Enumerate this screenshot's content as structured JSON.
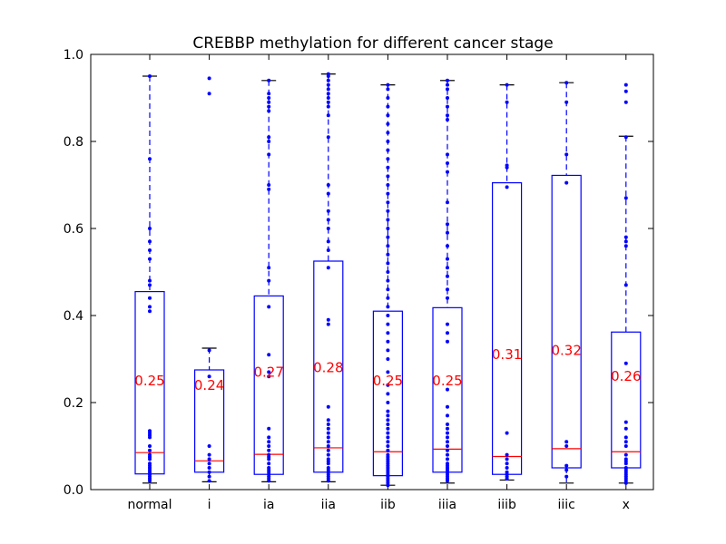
{
  "chart_data": {
    "type": "box",
    "title": "CREBBP methylation for different cancer stage",
    "xlabel": "",
    "ylabel": "",
    "ylim": [
      0.0,
      1.0
    ],
    "yticks": [
      "0.0",
      "0.2",
      "0.4",
      "0.6",
      "0.8",
      "1.0"
    ],
    "grid": false,
    "categories": [
      "normal",
      "i",
      "ia",
      "iia",
      "iib",
      "iiia",
      "iiib",
      "iiic",
      "x"
    ],
    "colors": {
      "box": "#0000ff",
      "median": "#ff0000",
      "whisker": "#0000ff",
      "flier": "#0000ff",
      "label": "#ff0000"
    },
    "boxes": [
      {
        "category": "normal",
        "whisker_low": 0.015,
        "q1": 0.036,
        "median": 0.085,
        "q3": 0.455,
        "whisker_high": 0.95,
        "mean_label": "0.25",
        "points": [
          0.02,
          0.025,
          0.03,
          0.035,
          0.04,
          0.045,
          0.05,
          0.055,
          0.06,
          0.07,
          0.075,
          0.08,
          0.09,
          0.1,
          0.12,
          0.125,
          0.13,
          0.135,
          0.41,
          0.42,
          0.44,
          0.47,
          0.48,
          0.53,
          0.55,
          0.57,
          0.6,
          0.76,
          0.95
        ]
      },
      {
        "category": "i",
        "whisker_low": 0.018,
        "q1": 0.04,
        "median": 0.066,
        "q3": 0.275,
        "whisker_high": 0.325,
        "mean_label": "0.24",
        "points": [
          0.02,
          0.03,
          0.04,
          0.05,
          0.06,
          0.07,
          0.08,
          0.1,
          0.26,
          0.32,
          0.91,
          0.945
        ]
      },
      {
        "category": "ia",
        "whisker_low": 0.018,
        "q1": 0.035,
        "median": 0.081,
        "q3": 0.445,
        "whisker_high": 0.94,
        "mean_label": "0.27",
        "points": [
          0.02,
          0.025,
          0.03,
          0.035,
          0.04,
          0.045,
          0.05,
          0.06,
          0.07,
          0.075,
          0.08,
          0.09,
          0.1,
          0.11,
          0.12,
          0.14,
          0.26,
          0.27,
          0.31,
          0.42,
          0.48,
          0.51,
          0.69,
          0.7,
          0.77,
          0.8,
          0.81,
          0.87,
          0.88,
          0.89,
          0.9,
          0.91,
          0.94
        ]
      },
      {
        "category": "iia",
        "whisker_low": 0.018,
        "q1": 0.04,
        "median": 0.096,
        "q3": 0.525,
        "whisker_high": 0.955,
        "mean_label": "0.28",
        "points": [
          0.02,
          0.025,
          0.03,
          0.035,
          0.04,
          0.045,
          0.05,
          0.06,
          0.065,
          0.07,
          0.08,
          0.09,
          0.1,
          0.11,
          0.12,
          0.13,
          0.14,
          0.15,
          0.16,
          0.19,
          0.38,
          0.39,
          0.51,
          0.55,
          0.57,
          0.6,
          0.62,
          0.64,
          0.68,
          0.7,
          0.81,
          0.86,
          0.88,
          0.89,
          0.9,
          0.91,
          0.92,
          0.93,
          0.94,
          0.95,
          0.955
        ]
      },
      {
        "category": "iib",
        "whisker_low": 0.01,
        "q1": 0.032,
        "median": 0.087,
        "q3": 0.41,
        "whisker_high": 0.93,
        "mean_label": "0.25",
        "points": [
          0.01,
          0.015,
          0.02,
          0.025,
          0.03,
          0.035,
          0.04,
          0.045,
          0.05,
          0.055,
          0.06,
          0.065,
          0.07,
          0.075,
          0.08,
          0.09,
          0.1,
          0.11,
          0.12,
          0.13,
          0.14,
          0.15,
          0.16,
          0.17,
          0.18,
          0.2,
          0.22,
          0.24,
          0.27,
          0.3,
          0.32,
          0.34,
          0.36,
          0.38,
          0.4,
          0.42,
          0.44,
          0.46,
          0.48,
          0.5,
          0.52,
          0.54,
          0.56,
          0.58,
          0.6,
          0.62,
          0.64,
          0.66,
          0.68,
          0.7,
          0.72,
          0.74,
          0.76,
          0.78,
          0.8,
          0.82,
          0.84,
          0.86,
          0.88,
          0.9,
          0.92,
          0.93
        ]
      },
      {
        "category": "iiia",
        "whisker_low": 0.015,
        "q1": 0.04,
        "median": 0.093,
        "q3": 0.418,
        "whisker_high": 0.94,
        "mean_label": "0.25",
        "points": [
          0.02,
          0.025,
          0.03,
          0.035,
          0.04,
          0.045,
          0.05,
          0.055,
          0.06,
          0.07,
          0.08,
          0.09,
          0.1,
          0.11,
          0.12,
          0.13,
          0.14,
          0.15,
          0.17,
          0.19,
          0.23,
          0.34,
          0.36,
          0.38,
          0.44,
          0.46,
          0.49,
          0.51,
          0.53,
          0.56,
          0.59,
          0.61,
          0.66,
          0.73,
          0.75,
          0.77,
          0.85,
          0.86,
          0.88,
          0.9,
          0.92,
          0.93,
          0.94
        ]
      },
      {
        "category": "iiib",
        "whisker_low": 0.022,
        "q1": 0.035,
        "median": 0.076,
        "q3": 0.705,
        "whisker_high": 0.93,
        "mean_label": "0.31",
        "points": [
          0.025,
          0.03,
          0.035,
          0.04,
          0.05,
          0.06,
          0.07,
          0.08,
          0.13,
          0.695,
          0.74,
          0.745,
          0.89,
          0.93
        ]
      },
      {
        "category": "iiic",
        "whisker_low": 0.015,
        "q1": 0.05,
        "median": 0.094,
        "q3": 0.722,
        "whisker_high": 0.935,
        "mean_label": "0.32",
        "points": [
          0.03,
          0.045,
          0.055,
          0.1,
          0.11,
          0.705,
          0.77,
          0.89,
          0.935
        ]
      },
      {
        "category": "x",
        "whisker_low": 0.015,
        "q1": 0.05,
        "median": 0.087,
        "q3": 0.362,
        "whisker_high": 0.812,
        "mean_label": "0.26",
        "points": [
          0.015,
          0.02,
          0.025,
          0.03,
          0.035,
          0.04,
          0.045,
          0.05,
          0.06,
          0.065,
          0.07,
          0.08,
          0.1,
          0.11,
          0.12,
          0.14,
          0.155,
          0.29,
          0.47,
          0.56,
          0.57,
          0.58,
          0.67,
          0.81,
          0.89,
          0.915,
          0.93
        ]
      }
    ]
  }
}
